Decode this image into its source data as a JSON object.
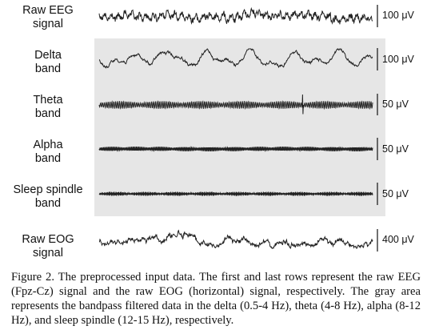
{
  "rows": [
    {
      "label_lines": [
        "Raw EEG",
        "signal"
      ],
      "scale": "100 μV"
    },
    {
      "label_lines": [
        "Delta",
        "band"
      ],
      "scale": "100 μV"
    },
    {
      "label_lines": [
        "Theta",
        "band"
      ],
      "scale": "50 μV"
    },
    {
      "label_lines": [
        "Alpha",
        "band"
      ],
      "scale": "50 μV"
    },
    {
      "label_lines": [
        "Sleep spindle",
        "band"
      ],
      "scale": "50 μV"
    },
    {
      "label_lines": [
        "Raw EOG",
        "signal"
      ],
      "scale": "400 μV"
    }
  ],
  "caption": "Figure 2.  The preprocessed input data. The first and last rows represent the raw EEG (Fpz-Cz) signal and the raw EOG (horizontal) signal, respectively. The gray area represents the bandpass filtered data in the delta (0.5-4 Hz), theta (4-8 Hz), alpha (8-12 Hz), and sleep spindle (12-15 Hz), respectively."
}
